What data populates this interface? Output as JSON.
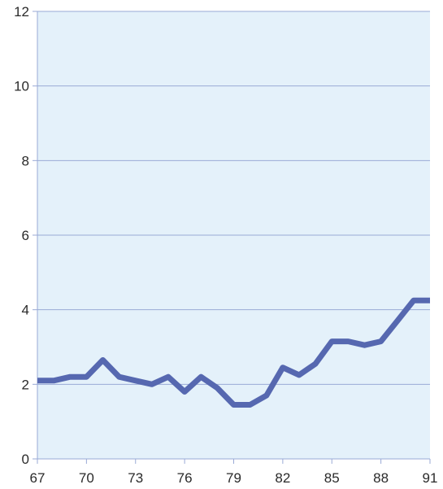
{
  "chart_data": {
    "type": "line",
    "title": "",
    "xlabel": "",
    "ylabel": "",
    "xlim": [
      67,
      91
    ],
    "ylim": [
      0,
      12
    ],
    "x_ticks": [
      "67",
      "70",
      "73",
      "76",
      "79",
      "82",
      "85",
      "88",
      "91"
    ],
    "y_ticks": [
      "0",
      "2",
      "4",
      "6",
      "8",
      "10",
      "12"
    ],
    "grid": "horizontal",
    "legend": "none",
    "series": [
      {
        "x": [
          67,
          68,
          69,
          70,
          71,
          72,
          73,
          74,
          75,
          76,
          77,
          78,
          79,
          80,
          81,
          82,
          83,
          84,
          85,
          86,
          87,
          88,
          89,
          90,
          91
        ],
        "values": [
          2.1,
          2.1,
          2.2,
          2.2,
          2.65,
          2.2,
          2.1,
          2.0,
          2.2,
          1.8,
          2.2,
          1.9,
          1.45,
          1.45,
          1.7,
          2.45,
          2.25,
          2.55,
          3.15,
          3.15,
          3.05,
          3.15,
          3.7,
          4.25,
          4.25
        ]
      }
    ],
    "colors": {
      "plot_background": "#e4f1fa",
      "gridline": "#9aaad6",
      "axis": "#9aaad6",
      "line": "#5668b0",
      "text": "#2a2a2a"
    }
  }
}
